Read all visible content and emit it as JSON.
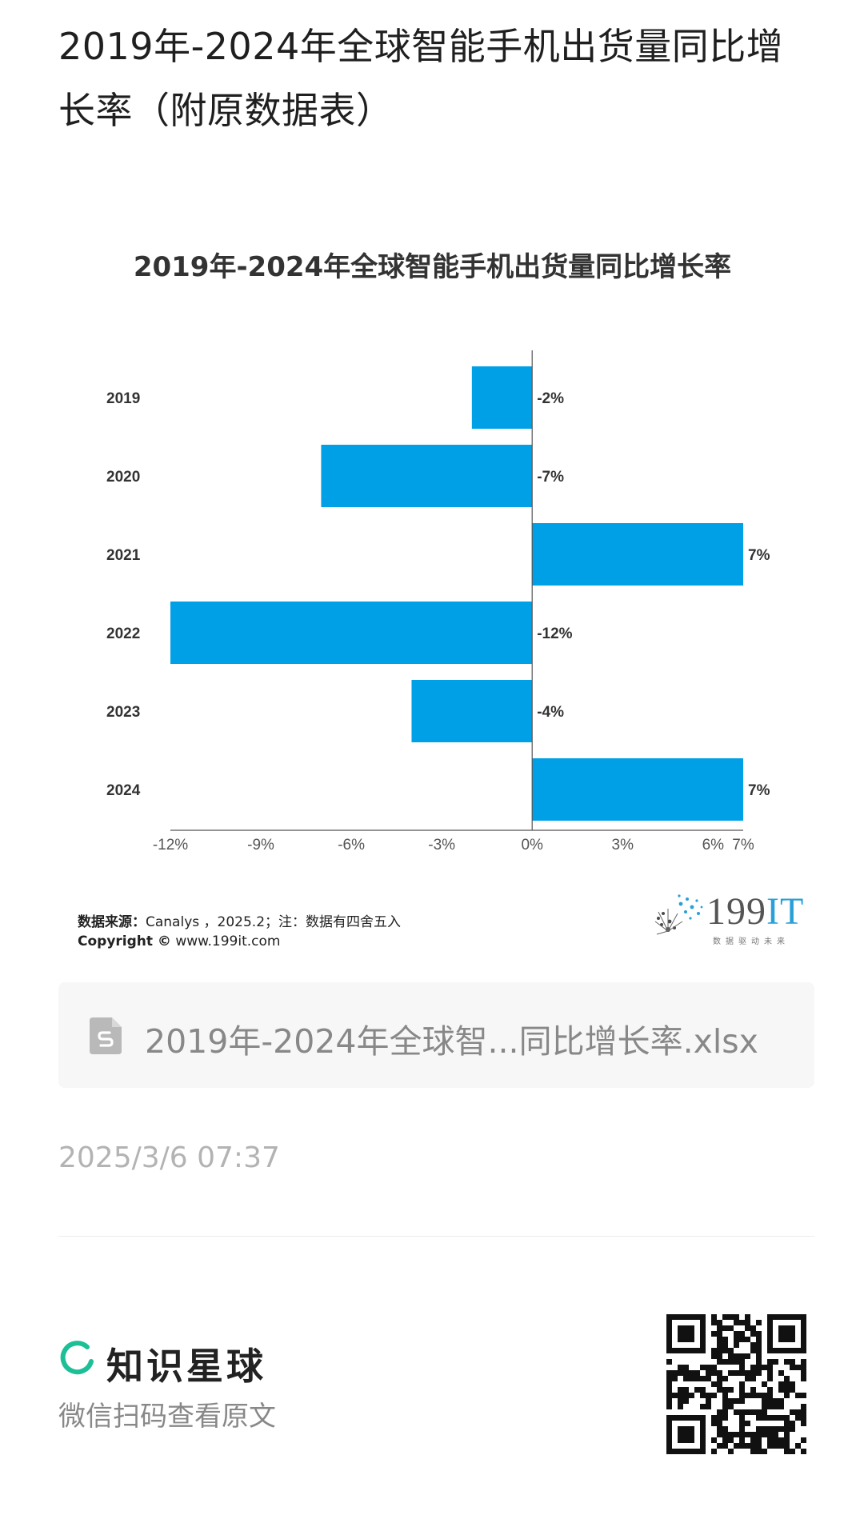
{
  "page": {
    "title": "2019年-2024年全球智能手机出货量同比增长率（附原数据表）"
  },
  "chart_image": {
    "source_label": "数据来源：",
    "source_text": "Canalys ，2025.2；注：数据有四舍五入",
    "copyright_label": "Copyright ©",
    "copyright_text": " www.199it.com",
    "brand_num": "199",
    "brand_it": "IT",
    "brand_slogan": "数据驱动未来"
  },
  "chart_data": {
    "type": "bar",
    "orientation": "horizontal",
    "title": "2019年-2024年全球智能手机出货量同比增长率",
    "categories": [
      "2019",
      "2020",
      "2021",
      "2022",
      "2023",
      "2024"
    ],
    "values": [
      -2,
      -7,
      7,
      -12,
      -4,
      7
    ],
    "value_labels": [
      "-2%",
      "-7%",
      "7%",
      "-12%",
      "-4%",
      "7%"
    ],
    "x_ticks": [
      -12,
      -9,
      -6,
      -3,
      0,
      3,
      6,
      7
    ],
    "x_tick_labels": [
      "-12%",
      "-9%",
      "-6%",
      "-3%",
      "0%",
      "3%",
      "6%",
      "7%"
    ],
    "xlim": [
      -12,
      7
    ],
    "grid": false,
    "bar_color": "#00a0e6",
    "xlabel": "",
    "ylabel": ""
  },
  "attachment": {
    "file_name": "2019年-2024年全球智...同比增长率.xlsx",
    "icon": "spreadsheet-file-icon"
  },
  "post": {
    "timestamp": "2025/3/6 07:37"
  },
  "footer": {
    "brand_name": "知识星球",
    "hint": "微信扫码查看原文",
    "brand_color": "#1dbf96"
  }
}
